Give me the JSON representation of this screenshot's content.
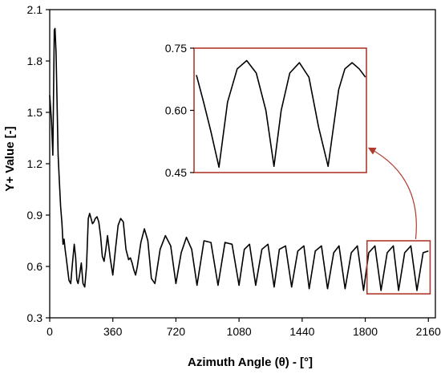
{
  "chart_data": [
    {
      "type": "line",
      "xlabel": "Azimuth Angle (θ) - [°]",
      "ylabel": "Y+ Value [-]",
      "xlim": [
        0,
        2200
      ],
      "ylim": [
        0.3,
        2.1
      ],
      "xticks": [
        0,
        360,
        720,
        1080,
        1440,
        1800,
        2160
      ],
      "yticks": [
        0.3,
        0.6,
        0.9,
        1.2,
        1.5,
        1.8,
        2.1
      ],
      "grid": false,
      "line_color": "#000000",
      "series": [
        {
          "x": [
            0,
            10,
            18,
            26,
            30,
            36,
            42,
            48,
            55,
            62,
            70,
            76,
            82,
            88,
            94,
            100,
            110,
            120,
            130,
            140,
            148,
            155,
            162,
            170,
            180,
            190,
            200,
            210,
            220,
            228,
            236,
            244,
            252,
            260,
            270,
            280,
            290,
            300,
            310,
            320,
            330,
            345,
            360,
            375,
            390,
            405,
            420,
            435,
            450,
            460,
            470,
            480,
            490,
            500,
            520,
            540,
            560,
            580,
            600,
            630,
            660,
            690,
            720,
            750,
            780,
            810,
            840,
            880,
            920,
            960,
            1000,
            1040,
            1080,
            1110,
            1140,
            1175,
            1210,
            1245,
            1280,
            1310,
            1345,
            1380,
            1415,
            1450,
            1480,
            1515,
            1550,
            1585,
            1620,
            1650,
            1685,
            1720,
            1755,
            1790,
            1820,
            1855,
            1890,
            1925,
            1960,
            1990,
            2025,
            2060,
            2095,
            2130,
            2160
          ],
          "y": [
            1.6,
            1.45,
            1.25,
            1.98,
            1.99,
            1.85,
            1.55,
            1.25,
            1.1,
            0.95,
            0.85,
            0.73,
            0.76,
            0.7,
            0.65,
            0.6,
            0.52,
            0.5,
            0.62,
            0.73,
            0.65,
            0.52,
            0.5,
            0.55,
            0.62,
            0.5,
            0.48,
            0.6,
            0.88,
            0.91,
            0.88,
            0.85,
            0.86,
            0.88,
            0.89,
            0.86,
            0.78,
            0.66,
            0.63,
            0.7,
            0.78,
            0.65,
            0.55,
            0.7,
            0.84,
            0.88,
            0.86,
            0.7,
            0.64,
            0.65,
            0.62,
            0.58,
            0.55,
            0.6,
            0.74,
            0.82,
            0.75,
            0.53,
            0.5,
            0.7,
            0.78,
            0.72,
            0.5,
            0.68,
            0.77,
            0.7,
            0.49,
            0.75,
            0.74,
            0.49,
            0.74,
            0.73,
            0.49,
            0.7,
            0.73,
            0.49,
            0.7,
            0.73,
            0.48,
            0.7,
            0.72,
            0.48,
            0.69,
            0.72,
            0.47,
            0.69,
            0.72,
            0.47,
            0.68,
            0.72,
            0.47,
            0.68,
            0.72,
            0.46,
            0.68,
            0.72,
            0.46,
            0.68,
            0.72,
            0.46,
            0.68,
            0.72,
            0.46,
            0.68,
            0.69
          ]
        }
      ],
      "highlight_box": {
        "x_range": [
          1810,
          2170
        ],
        "y_range": [
          0.44,
          0.75
        ],
        "color": "#b03a2e"
      }
    },
    {
      "type": "line",
      "role": "inset",
      "xlim": [
        1810,
        2170
      ],
      "ylim": [
        0.45,
        0.75
      ],
      "yticks": [
        0.45,
        0.6,
        0.75
      ],
      "line_color": "#000000",
      "border_color": "#b03a2e",
      "series": [
        {
          "x": [
            1815,
            1830,
            1845,
            1862,
            1880,
            1900,
            1920,
            1940,
            1960,
            1977,
            1992,
            2010,
            2030,
            2050,
            2070,
            2090,
            2100,
            2112,
            2125,
            2140,
            2155,
            2168
          ],
          "y": [
            0.685,
            0.62,
            0.55,
            0.463,
            0.62,
            0.7,
            0.72,
            0.69,
            0.6,
            0.465,
            0.6,
            0.69,
            0.715,
            0.68,
            0.56,
            0.465,
            0.55,
            0.65,
            0.7,
            0.715,
            0.7,
            0.68
          ]
        }
      ]
    }
  ]
}
